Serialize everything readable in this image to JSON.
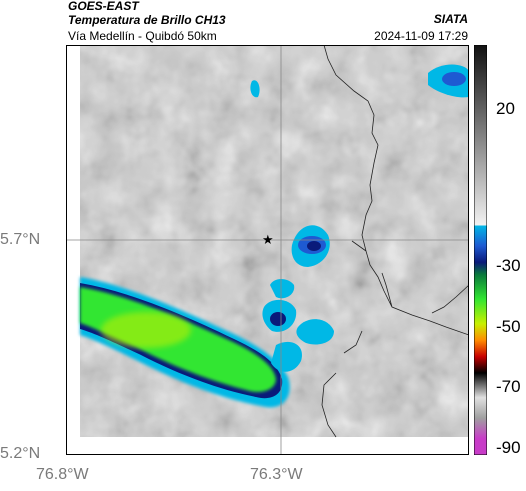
{
  "header": {
    "satellite": "GOES-EAST",
    "product": "Temperatura de Brillo CH13",
    "location": "Vía Medellín - Quibdó 50km",
    "brand": "SIATA",
    "datetime": "2024-11-09 17:29"
  },
  "axes": {
    "lat_ticks": [
      "5.7°N",
      "5.2°N"
    ],
    "lon_ticks": [
      "76.8°W",
      "76.3°W"
    ]
  },
  "colorbar": {
    "labels": [
      "20",
      "-30",
      "-50",
      "-70",
      "-90"
    ],
    "colors": {
      "gray_light": "#f2f2f2",
      "gray_dark": "#1a1a1a",
      "cyan": "#00b8e6",
      "blue": "#1e5ad2",
      "navy": "#0a1a7a",
      "green": "#32e632",
      "yellow_green": "#c8f000",
      "orange": "#ff8c00",
      "red": "#c80000",
      "black": "#000000",
      "magenta": "#c83cc8"
    }
  },
  "map": {
    "marker": "star-marker",
    "gridline_color": "#888888"
  }
}
